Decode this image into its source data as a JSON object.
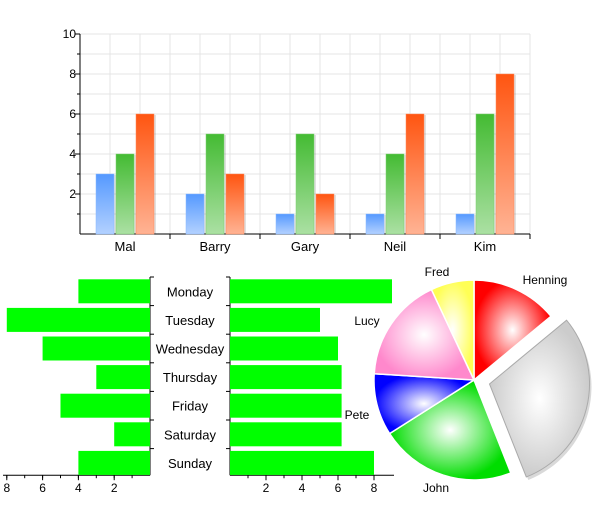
{
  "chart_data": [
    {
      "type": "bar",
      "categories": [
        "Mal",
        "Barry",
        "Gary",
        "Neil",
        "Kim"
      ],
      "series": [
        {
          "values": [
            3,
            2,
            1,
            1,
            1
          ],
          "color": "#5599ff"
        },
        {
          "values": [
            4,
            5,
            5,
            4,
            6
          ],
          "color": "#44bb33"
        },
        {
          "values": [
            6,
            3,
            2,
            6,
            8
          ],
          "color": "#ff5511"
        }
      ],
      "ylim": [
        0,
        10
      ],
      "yticks": [
        2,
        4,
        6,
        8,
        10
      ],
      "grid": true
    },
    {
      "type": "bar",
      "orientation": "horizontal",
      "categories": [
        "Monday",
        "Tuesday",
        "Wednesday",
        "Thursday",
        "Friday",
        "Saturday",
        "Sunday"
      ],
      "left_values": [
        4,
        8,
        6,
        3,
        5,
        2,
        4
      ],
      "right_values": [
        9,
        5,
        6,
        6.2,
        6.2,
        6.2,
        8
      ],
      "left_ticks": [
        8,
        6,
        4,
        2
      ],
      "right_ticks": [
        2,
        4,
        6,
        8
      ],
      "left_xlim": [
        0,
        8.1
      ],
      "right_xlim": [
        0,
        9
      ],
      "color": "#00ff00"
    },
    {
      "type": "pie",
      "slices": [
        {
          "label": "Henning",
          "value": 14,
          "color": "#ff0000",
          "exploded": false
        },
        {
          "label": "",
          "value": 30,
          "color": "#cccccc",
          "exploded": true
        },
        {
          "label": "John",
          "value": 22,
          "color": "#00dd00",
          "exploded": false
        },
        {
          "label": "Pete",
          "value": 10,
          "color": "#0000ff",
          "exploded": false
        },
        {
          "label": "Lucy",
          "value": 17,
          "color": "#ff88cc",
          "exploded": false
        },
        {
          "label": "Fred",
          "value": 7,
          "color": "#ffff55",
          "exploded": false
        }
      ]
    }
  ]
}
